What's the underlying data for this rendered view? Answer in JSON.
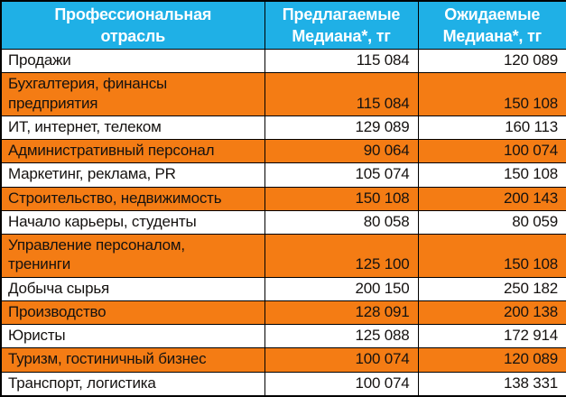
{
  "colors": {
    "header_bg": "#1fb0e6",
    "header_text": "#ffffff",
    "row_orange": "#f47c14",
    "row_white": "#ffffff",
    "border": "#000000",
    "body_text": "#151210"
  },
  "chart_data": {
    "type": "table",
    "columns": [
      "Профессиональная\nотрасль",
      "Предлагаемые\nМедиана*, тг",
      "Ожидаемые\nМедиана*, тг"
    ],
    "rows": [
      {
        "industry": "Продажи",
        "offered": "115 084",
        "expected": "120 089"
      },
      {
        "industry": "Бухгалтерия, финансы\nпредприятия",
        "offered": "115 084",
        "expected": "150 108"
      },
      {
        "industry": "ИТ, интернет, телеком",
        "offered": "129 089",
        "expected": "160 113"
      },
      {
        "industry": "Административный персонал",
        "offered": "90 064",
        "expected": "100 074"
      },
      {
        "industry": "Маркетинг, реклама, PR",
        "offered": "105 074",
        "expected": "150 108"
      },
      {
        "industry": "Строительство, недвижимость",
        "offered": "150 108",
        "expected": "200 143"
      },
      {
        "industry": "Начало карьеры, студенты",
        "offered": "80 058",
        "expected": "80 059"
      },
      {
        "industry": "Управление персоналом,\nтренинги",
        "offered": "125 100",
        "expected": "150 108"
      },
      {
        "industry": "Добыча сырья",
        "offered": "200 150",
        "expected": "250 182"
      },
      {
        "industry": "Производство",
        "offered": "128 091",
        "expected": "200 138"
      },
      {
        "industry": "Юристы",
        "offered": "125 088",
        "expected": "172 914"
      },
      {
        "industry": "Туризм, гостиничный бизнес",
        "offered": "100 074",
        "expected": "120 089"
      },
      {
        "industry": "Транспорт, логистика",
        "offered": "100 074",
        "expected": "138 331"
      }
    ]
  }
}
